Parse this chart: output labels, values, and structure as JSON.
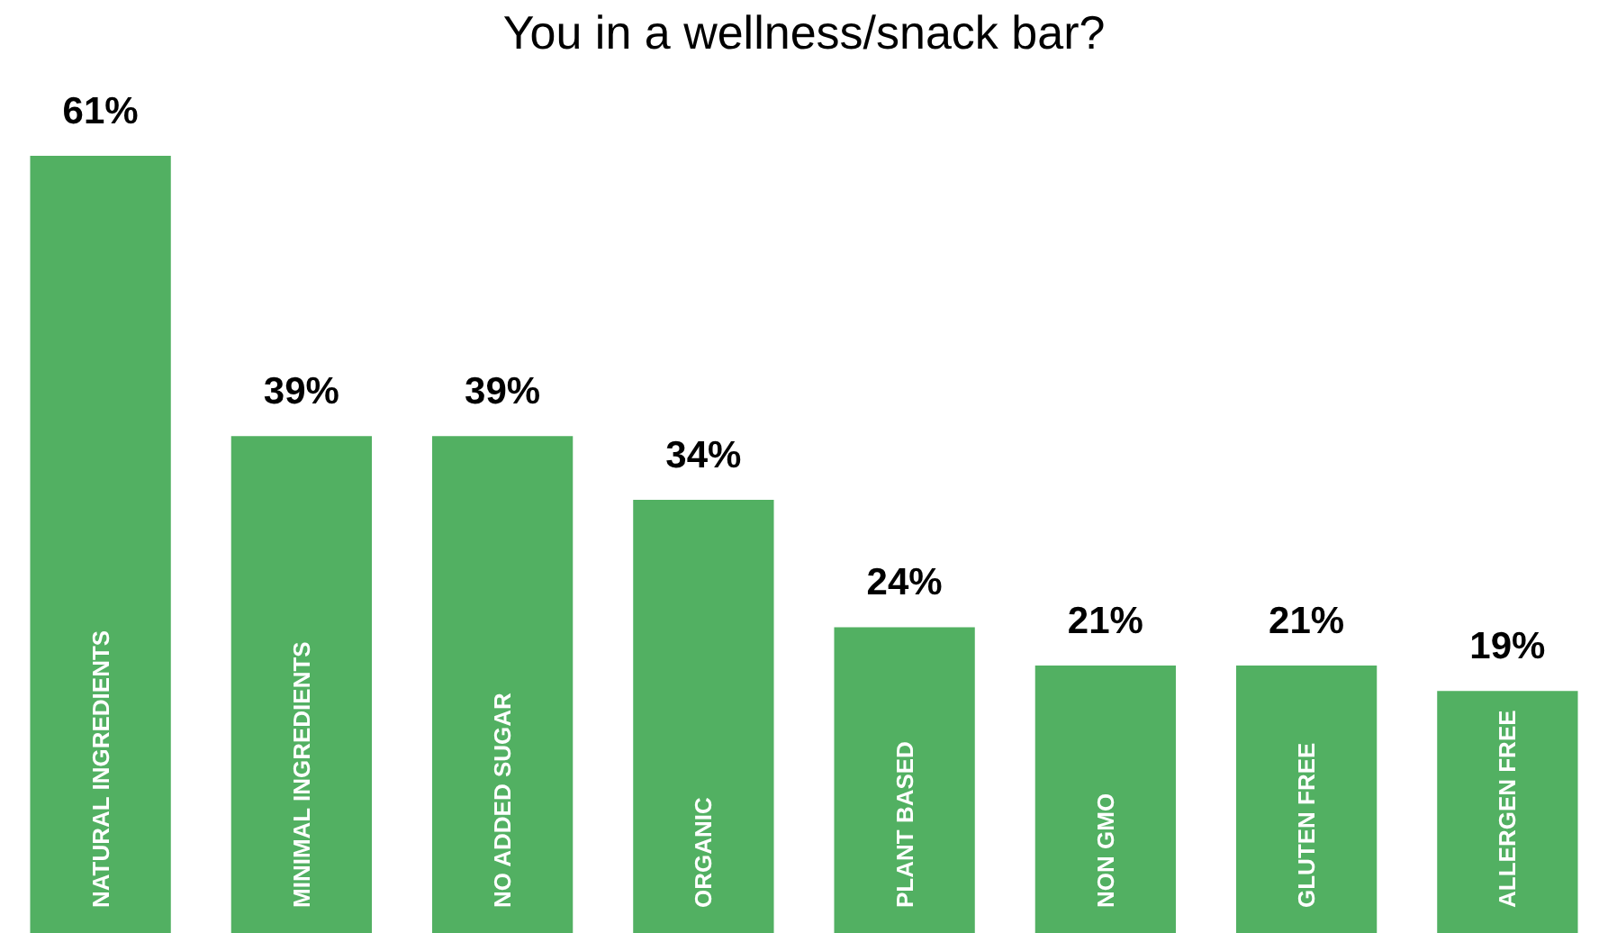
{
  "chart_data": {
    "type": "bar",
    "title": "You in a wellness/snack bar?",
    "categories": [
      "NATURAL INGREDIENTS",
      "MINIMAL INGREDIENTS",
      "NO ADDED SUGAR",
      "ORGANIC",
      "PLANT BASED",
      "NON GMO",
      "GLUTEN FREE",
      "ALLERGEN FREE"
    ],
    "values": [
      61,
      39,
      39,
      34,
      24,
      21,
      21,
      19
    ],
    "color": "#52b062",
    "data_labels": true,
    "value_labels": [
      "61%",
      "39%",
      "39%",
      "34%",
      "24%",
      "21%",
      "21%",
      "19%"
    ]
  }
}
